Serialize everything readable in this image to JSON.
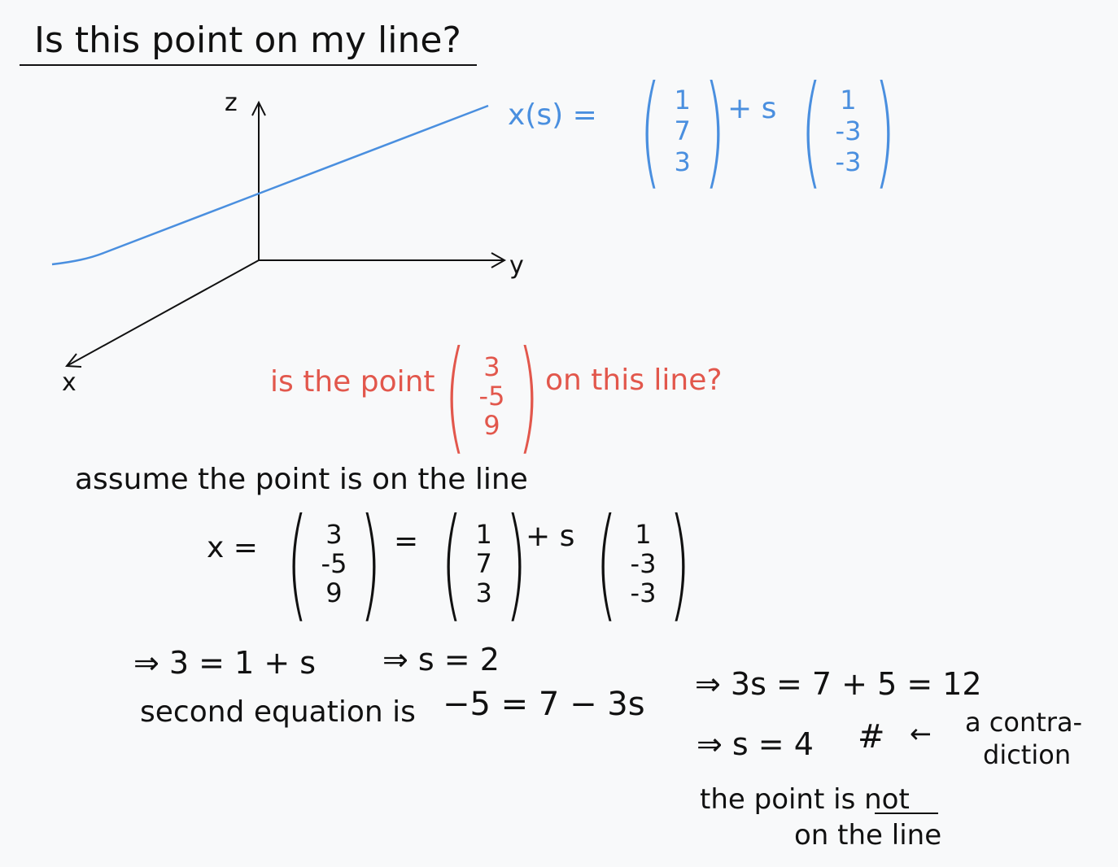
{
  "title": "Is this point on my line?",
  "axes": {
    "z": "z",
    "y": "y",
    "x": "x"
  },
  "line_equation": {
    "lhs": "x(s) =",
    "point": [
      "1",
      "7",
      "3"
    ],
    "plus_s": "+ s",
    "direction": [
      "1",
      "-3",
      "-3"
    ]
  },
  "question": {
    "before": "is the point",
    "point": [
      "3",
      "-5",
      "9"
    ],
    "after": "on this line?"
  },
  "assume": "assume the point is on the line",
  "equation2": {
    "lhs": "x =",
    "point": [
      "3",
      "-5",
      "9"
    ],
    "eq": "=",
    "base": [
      "1",
      "7",
      "3"
    ],
    "plus_s": "+ s",
    "direction": [
      "1",
      "-3",
      "-3"
    ]
  },
  "steps": {
    "first": "⇒ 3 = 1 + s",
    "first_result": "⇒ s = 2",
    "second_label": "second equation is",
    "second_eq": "−5 = 7 − 3s",
    "second_result": "⇒ 3s = 7 + 5 = 12",
    "s_four": "⇒ s = 4",
    "contradiction_mark": "#",
    "contradiction_arrow": "←",
    "contradiction_text_1": "a contra-",
    "contradiction_text_2": "diction"
  },
  "conclusion": {
    "line1_a": "the point is",
    "line1_b": "not",
    "line2": "on the line"
  },
  "colors": {
    "blue": "#4a8fdf",
    "red": "#e2574c",
    "ink": "#111111"
  }
}
